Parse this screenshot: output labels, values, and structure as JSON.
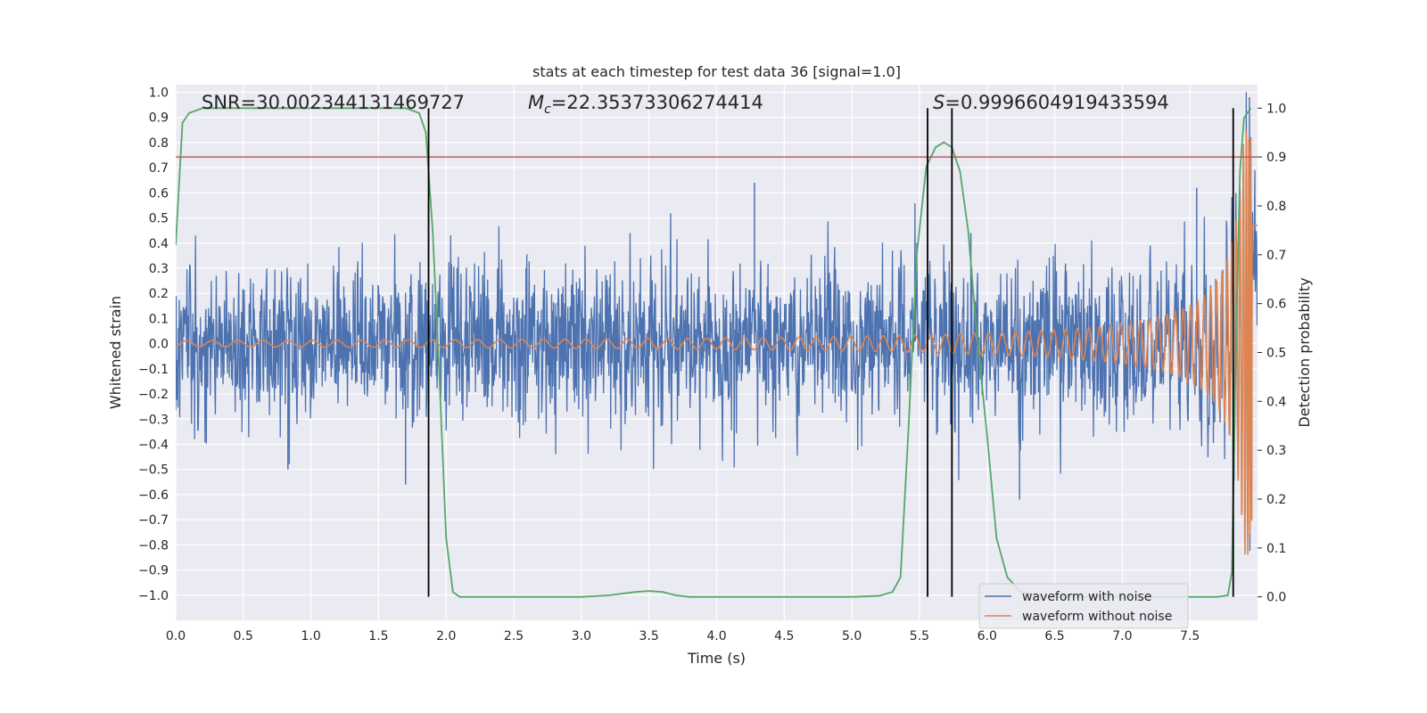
{
  "chart_data": {
    "type": "line",
    "title": "stats at each timestep for test data 36 [signal=1.0]",
    "xlabel": "Time (s)",
    "ylabel": "Whitened strain",
    "y2label": "Detection probability",
    "xlim": [
      0.0,
      8.0
    ],
    "ylim": [
      -1.1,
      1.03
    ],
    "y2lim": [
      -0.048,
      1.048
    ],
    "x_ticks": [
      0.0,
      0.5,
      1.0,
      1.5,
      2.0,
      2.5,
      3.0,
      3.5,
      4.0,
      4.5,
      5.0,
      5.5,
      6.0,
      6.5,
      7.0,
      7.5
    ],
    "x_tick_labels": [
      "0.0",
      "0.5",
      "1.0",
      "1.5",
      "2.0",
      "2.5",
      "3.0",
      "3.5",
      "4.0",
      "4.5",
      "5.0",
      "5.5",
      "6.0",
      "6.5",
      "7.0",
      "7.5"
    ],
    "y_ticks": [
      -1.0,
      -0.9,
      -0.8,
      -0.7,
      -0.6,
      -0.5,
      -0.4,
      -0.3,
      -0.2,
      -0.1,
      0.0,
      0.1,
      0.2,
      0.3,
      0.4,
      0.5,
      0.6,
      0.7,
      0.8,
      0.9,
      1.0
    ],
    "y_tick_labels": [
      "−1.0",
      "−0.9",
      "−0.8",
      "−0.7",
      "−0.6",
      "−0.5",
      "−0.4",
      "−0.3",
      "−0.2",
      "−0.1",
      "0.0",
      "0.1",
      "0.2",
      "0.3",
      "0.4",
      "0.5",
      "0.6",
      "0.7",
      "0.8",
      "0.9",
      "1.0"
    ],
    "y2_ticks": [
      0.0,
      0.1,
      0.2,
      0.3,
      0.4,
      0.5,
      0.6,
      0.7,
      0.8,
      0.9,
      1.0
    ],
    "y2_tick_labels": [
      "0.0",
      "0.1",
      "0.2",
      "0.3",
      "0.4",
      "0.5",
      "0.6",
      "0.7",
      "0.8",
      "0.9",
      "1.0"
    ],
    "annotations": {
      "snr": "SNR=30.002344131469727",
      "mc_prefix": "M",
      "mc_sub": "c",
      "mc_value": "=22.35373306274414",
      "s_prefix": "S",
      "s_value": "=0.9996604919433594"
    },
    "threshold": {
      "value": 0.9,
      "axis": "y2",
      "color": "#c44e52"
    },
    "detection_markers_x": [
      1.87,
      5.56,
      5.74,
      7.82
    ],
    "series": [
      {
        "name": "waveform with noise",
        "color": "#4c72b0",
        "axis": "y",
        "kind": "noise",
        "noise_sigma": 0.16,
        "x_range": [
          0.0,
          8.0
        ],
        "approx_extremes": [
          {
            "x": 1.87,
            "y": 0.56
          },
          {
            "x": 1.7,
            "y": -0.56
          },
          {
            "x": 4.28,
            "y": 0.64
          },
          {
            "x": 5.88,
            "y": 0.44
          },
          {
            "x": 6.24,
            "y": -0.62
          },
          {
            "x": 7.55,
            "y": 0.62
          },
          {
            "x": 7.94,
            "y": 0.98
          },
          {
            "x": 0.83,
            "y": -0.5
          }
        ]
      },
      {
        "name": "waveform without noise",
        "color": "#dd8452",
        "axis": "y",
        "kind": "chirp",
        "merger_time": 7.97,
        "amplitude_start": 0.012,
        "amplitude_at_7": 0.08,
        "amplitude_peak": 0.85
      },
      {
        "name": "detection probability",
        "color": "#55a868",
        "axis": "y2",
        "kind": "line",
        "x": [
          0.0,
          0.05,
          0.1,
          0.2,
          1.7,
          1.8,
          1.85,
          1.9,
          1.95,
          2.0,
          2.05,
          2.1,
          2.2,
          3.0,
          3.2,
          3.4,
          3.5,
          3.6,
          3.7,
          3.8,
          4.0,
          5.0,
          5.2,
          5.3,
          5.36,
          5.42,
          5.48,
          5.55,
          5.62,
          5.68,
          5.74,
          5.8,
          5.86,
          5.92,
          6.0,
          6.07,
          6.15,
          6.25,
          6.4,
          7.7,
          7.78,
          7.81,
          7.84,
          7.87,
          7.9,
          7.95
        ],
        "y": [
          0.72,
          0.97,
          0.99,
          1.0,
          1.0,
          0.99,
          0.95,
          0.75,
          0.45,
          0.12,
          0.01,
          0.0,
          0.0,
          0.0,
          0.003,
          0.01,
          0.012,
          0.01,
          0.003,
          0.0,
          0.0,
          0.0,
          0.002,
          0.01,
          0.04,
          0.35,
          0.7,
          0.88,
          0.92,
          0.93,
          0.92,
          0.87,
          0.75,
          0.55,
          0.33,
          0.12,
          0.04,
          0.01,
          0.0,
          0.0,
          0.003,
          0.05,
          0.5,
          0.87,
          0.98,
          1.0
        ]
      }
    ],
    "legend": {
      "placement": "lower-right",
      "entries": [
        {
          "label": "waveform with noise",
          "color": "#4c72b0"
        },
        {
          "label": "waveform without noise",
          "color": "#dd8452"
        }
      ]
    }
  }
}
